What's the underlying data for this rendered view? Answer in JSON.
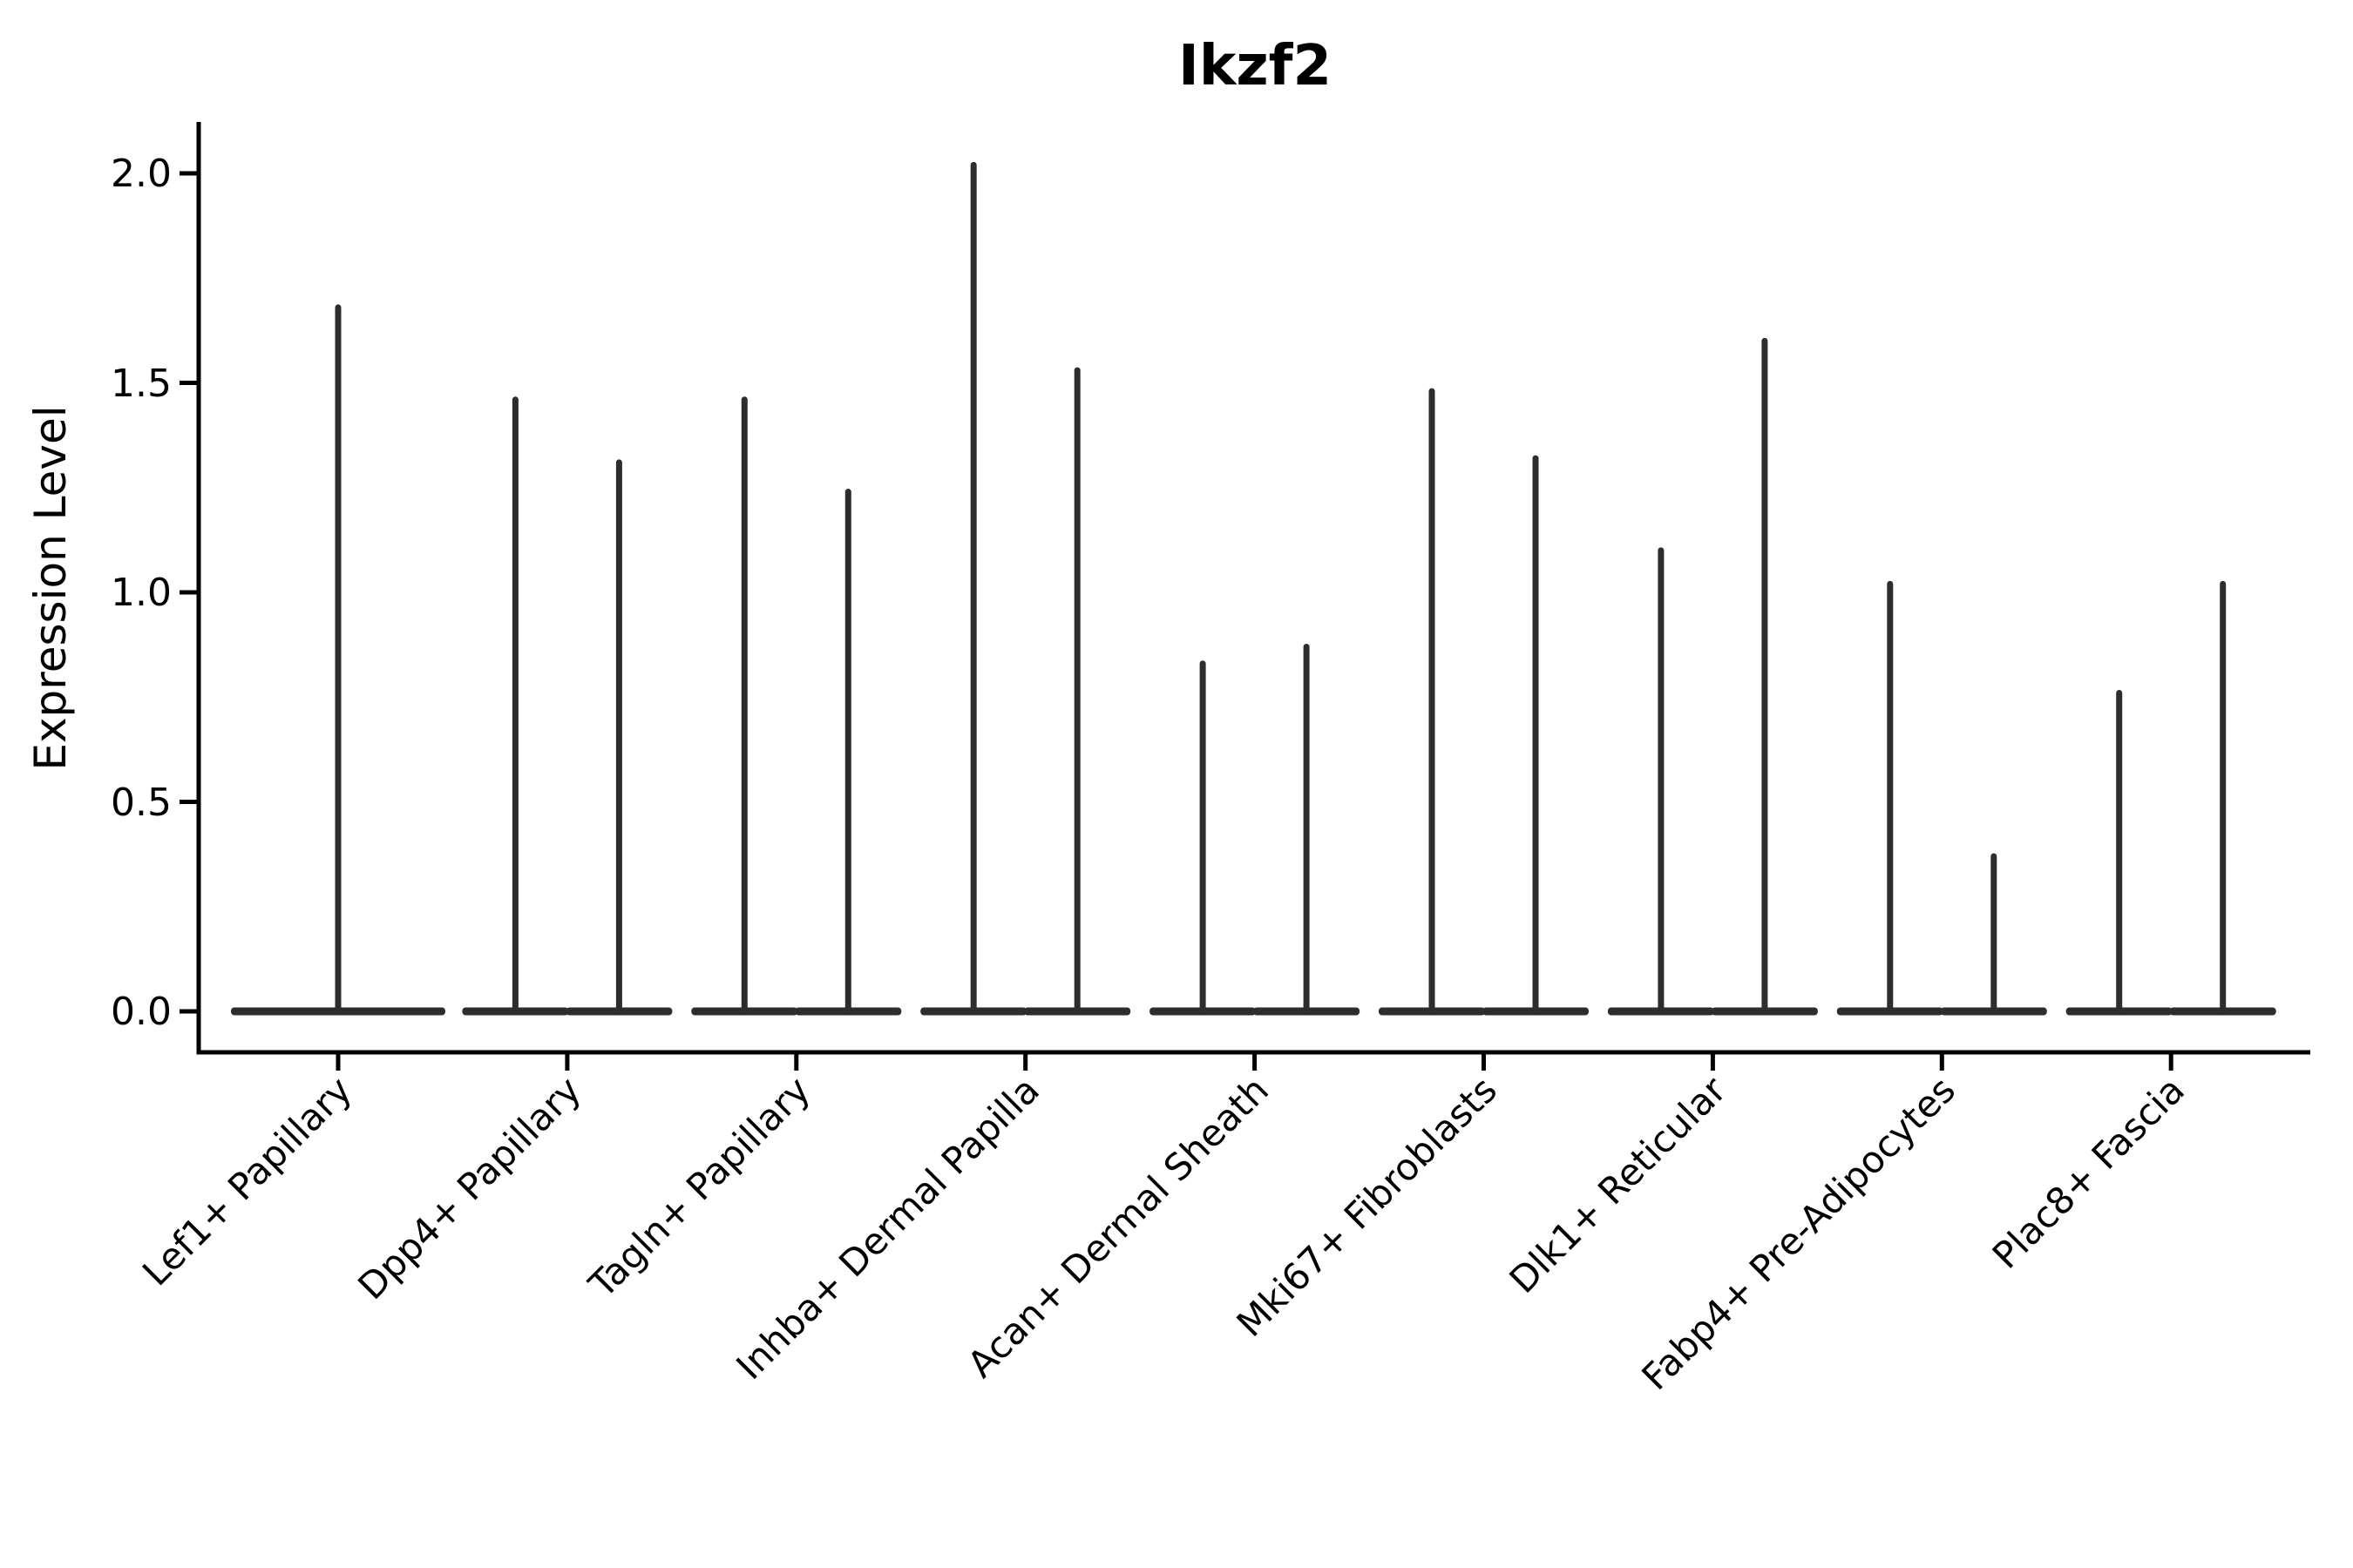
{
  "title": "Ikzf2",
  "y_axis": {
    "label": "Expression Level",
    "tick_labels": [
      "2.0",
      "1.5",
      "1.0",
      "0.5",
      "0.0"
    ]
  },
  "style": {
    "violin_color": "#2d2d2d",
    "axis_color": "#000000",
    "background": "#ffffff"
  },
  "chart_data": {
    "type": "violin",
    "title": "Ikzf2",
    "xlabel": "",
    "ylabel": "Expression Level",
    "ylim": [
      0.0,
      2.0
    ],
    "yticks": [
      0.0,
      0.5,
      1.0,
      1.5,
      2.0
    ],
    "ytick_labels": [
      "0.0",
      "0.5",
      "1.0",
      "1.5",
      "2.0"
    ],
    "grid": false,
    "legend": false,
    "distribution_shape": "density mass concentrated at 0 (wide flat base) with an extremely thin tail reaching the maximum expression value",
    "categories": [
      "Lef1+ Papillary",
      "Dpp4+ Papillary",
      "Tagln+ Papillary",
      "Inhba+ Dermal Papilla",
      "Acan+ Dermal Sheath",
      "Mki67+ Fibroblasts",
      "Dlk1+ Reticular",
      "Fabp4+ Pre-Adipocytes",
      "Plac8+ Fascia"
    ],
    "violins_per_category": [
      1,
      2,
      2,
      2,
      2,
      2,
      2,
      2,
      2
    ],
    "violin_max_values": [
      [
        1.68
      ],
      [
        1.46,
        1.31
      ],
      [
        1.46,
        1.24
      ],
      [
        2.02,
        1.53
      ],
      [
        0.83,
        0.87
      ],
      [
        1.48,
        1.32
      ],
      [
        1.1,
        1.6
      ],
      [
        1.02,
        0.37
      ],
      [
        0.76,
        1.02
      ]
    ],
    "violin_min_values": [
      [
        0.0
      ],
      [
        0.0,
        0.0
      ],
      [
        0.0,
        0.0
      ],
      [
        0.0,
        0.0
      ],
      [
        0.0,
        0.0
      ],
      [
        0.0,
        0.0
      ],
      [
        0.0,
        0.0
      ],
      [
        0.0,
        0.0
      ],
      [
        0.0,
        0.0
      ]
    ]
  }
}
